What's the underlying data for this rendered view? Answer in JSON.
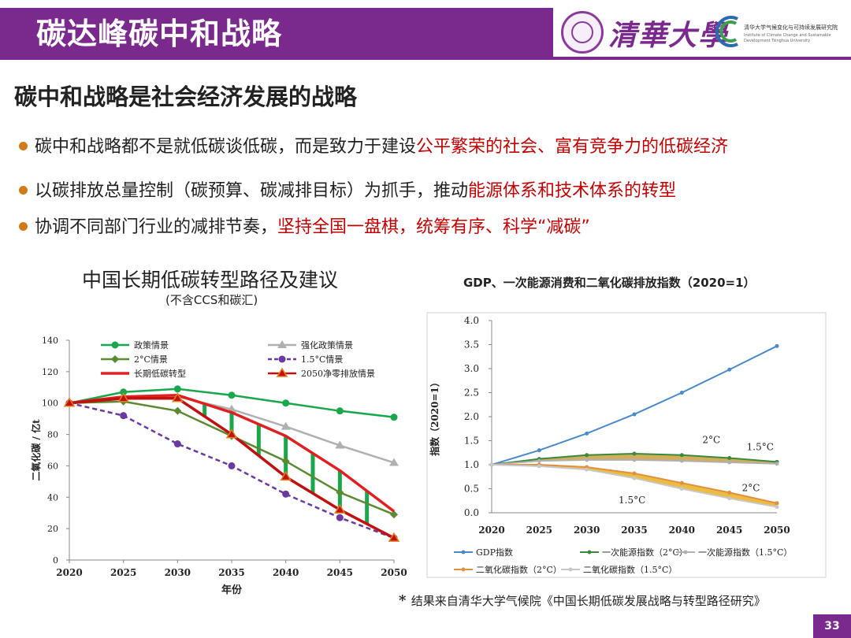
{
  "header": {
    "title": "碳达峰碳中和战略",
    "university": "清華大學",
    "institute": "清华大学气候变化与可持续发展研究院",
    "institute_en": "Institute of Climate Change and Sustainable Development Tsinghua University"
  },
  "subtitle": "碳中和战略是社会经济发展的战略",
  "bullets": [
    {
      "text": "碳中和战略都不是就低碳谈低碳，而是致力于建设",
      "highlight": "公平繁荣的社会、富有竞争力的低碳经济"
    },
    {
      "text": "以碳排放总量控制（碳预算、碳减排目标）为抓手，推动",
      "highlight": "能源体系和技术体系的转型"
    },
    {
      "text": "协调不同部门行业的减排节奏，",
      "highlight": "坚持全国一盘棋，统筹有序、科学“减碳”"
    }
  ],
  "left_chart_title": "中国长期低碳转型路径及建议",
  "left_chart_subtitle": "(不含CCS和碳汇)",
  "right_chart_title": "GDP、一次能源消费和二氧化碳排放指数（2020=1）",
  "note": "结果来自清华大学气候院《中国长期低碳发展战略与转型路径研究》",
  "page_number": "33",
  "colors": {
    "purple": "#7a2a8c",
    "red": "#c00000",
    "bullet": "#d07a1a"
  },
  "chart_data": [
    {
      "type": "line",
      "title": "中国长期低碳转型路径及建议",
      "xlabel": "年份",
      "ylabel": "二氧化碳 / 亿t",
      "x": [
        2020,
        2025,
        2030,
        2035,
        2040,
        2045,
        2050
      ],
      "ylim": [
        0,
        140
      ],
      "yticks": [
        0,
        20,
        40,
        60,
        80,
        100,
        120,
        140
      ],
      "series": [
        {
          "name": "政策情景",
          "color": "#1aa64a",
          "marker": "circle",
          "values": [
            100,
            107,
            109,
            105,
            100,
            95,
            91
          ]
        },
        {
          "name": "强化政策情景",
          "color": "#b0b0b0",
          "marker": "triangle",
          "values": [
            100,
            103,
            104,
            96,
            85,
            73,
            62
          ]
        },
        {
          "name": "2°C情景",
          "color": "#5a8a32",
          "marker": "diamond",
          "values": [
            100,
            101,
            95,
            79,
            63,
            43,
            29
          ]
        },
        {
          "name": "1.5°C情景",
          "color": "#6a3aa0",
          "marker": "circle",
          "dashed": true,
          "values": [
            100,
            92,
            74,
            60,
            42,
            27,
            14
          ]
        },
        {
          "name": "长期低碳转型",
          "color": "#e02020",
          "marker": "none",
          "values": [
            100,
            104,
            105,
            94,
            79,
            57,
            31
          ]
        },
        {
          "name": "2050净零排放情景",
          "color": "#c01010",
          "marker": "triangle",
          "values": [
            100,
            103,
            103,
            80,
            53,
            32,
            14
          ]
        }
      ],
      "legend": "top"
    },
    {
      "type": "line",
      "title": "GDP、一次能源消费和二氧化碳排放指数（2020=1）",
      "ylabel": "指数（2020=1）",
      "x": [
        2020,
        2025,
        2030,
        2035,
        2040,
        2045,
        2050
      ],
      "ylim": [
        0,
        4.0
      ],
      "yticks": [
        "0.0",
        "0.5",
        "1.0",
        "1.5",
        "2.0",
        "2.5",
        "3.0",
        "3.5",
        "4.0"
      ],
      "series": [
        {
          "name": "GDP指数",
          "color": "#4a8ac8",
          "values": [
            1.0,
            1.3,
            1.65,
            2.05,
            2.5,
            2.98,
            3.47
          ]
        },
        {
          "name": "一次能源指数（2°C）",
          "color": "#3a8a3a",
          "values": [
            1.0,
            1.12,
            1.2,
            1.23,
            1.2,
            1.14,
            1.06
          ]
        },
        {
          "name": "一次能源指数（1.5°C）",
          "color": "#b0b0b0",
          "values": [
            1.0,
            1.08,
            1.1,
            1.1,
            1.08,
            1.05,
            1.02
          ]
        },
        {
          "name": "二氧化碳指数（2°C）",
          "color": "#e09040",
          "values": [
            1.0,
            1.0,
            0.95,
            0.82,
            0.62,
            0.42,
            0.2
          ]
        },
        {
          "name": "二氧化碳指数（1.5°C）",
          "color": "#c8c8c8",
          "values": [
            1.0,
            0.97,
            0.9,
            0.72,
            0.5,
            0.3,
            0.12
          ]
        }
      ],
      "annotations": [
        "2°C",
        "1.5°C",
        "2°C",
        "1.5°C"
      ],
      "legend": "bottom"
    }
  ]
}
